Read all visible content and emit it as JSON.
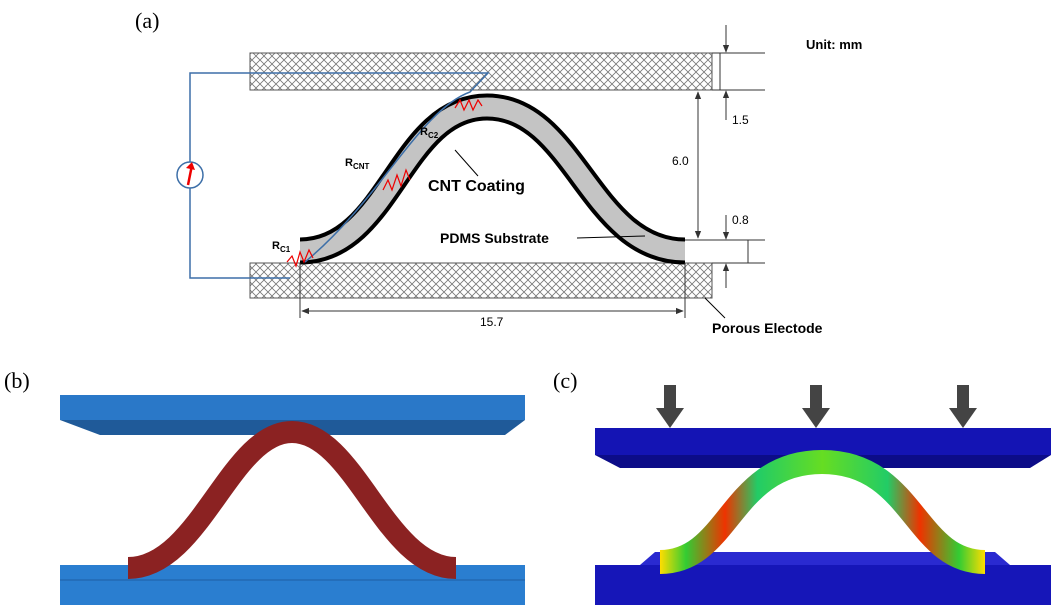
{
  "panel_a": {
    "label": "(a)",
    "unit": "Unit: mm",
    "dimensions": {
      "electrode_thickness": "1.5",
      "gap": "6.0",
      "substrate_thickness": "0.8",
      "span": "15.7"
    },
    "resistors": [
      {
        "main": "R",
        "sub": "C2"
      },
      {
        "main": "R",
        "sub": "CNT"
      },
      {
        "main": "R",
        "sub": "C1"
      }
    ],
    "callouts": {
      "coating": "CNT Coating",
      "substrate": "PDMS Substrate",
      "electrode": "Porous Electode"
    }
  },
  "panel_b": {
    "label": "(b)"
  },
  "panel_c": {
    "label": "(c)"
  }
}
